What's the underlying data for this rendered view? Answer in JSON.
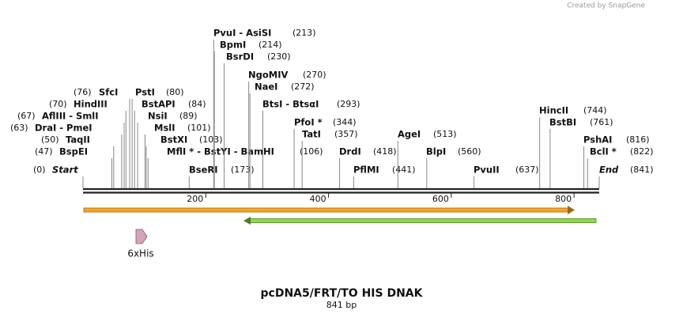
{
  "credit": "Created by SnapGene",
  "map": {
    "title": "pcDNA5/FRT/TO HIS DNAK",
    "size_label": "841 bp",
    "length": 841,
    "ticks": [
      200,
      400,
      600,
      800
    ],
    "sites": [
      {
        "name": "Start",
        "position": {
          "value": 0,
          "label": "(0)"
        }
      },
      {
        "name": "BspEI",
        "position": {
          "value": 47,
          "label": "(47)"
        }
      },
      {
        "name": "TaqII",
        "position": {
          "value": 50,
          "label": "(50)"
        }
      },
      {
        "name": "DraI  -  PmeI",
        "position": {
          "value": 63,
          "label": "(63)"
        }
      },
      {
        "name": "AflIII  -  SmlI",
        "position": {
          "value": 67,
          "label": "(67)"
        }
      },
      {
        "name": "HindIII",
        "position": {
          "value": 70,
          "label": "(70)"
        }
      },
      {
        "name": "SfcI",
        "position": {
          "value": 76,
          "label": "(76)"
        }
      },
      {
        "name": "PstI",
        "position": {
          "value": 80,
          "label": "(80)"
        }
      },
      {
        "name": "BstAPI",
        "position": {
          "value": 84,
          "label": "(84)"
        }
      },
      {
        "name": "NsiI",
        "position": {
          "value": 89,
          "label": "(89)"
        }
      },
      {
        "name": "MslI",
        "position": {
          "value": 101,
          "label": "(101)"
        }
      },
      {
        "name": "BstXI",
        "position": {
          "value": 103,
          "label": "(103)"
        }
      },
      {
        "name": "MflI *  -  BstYI  -  BamHI",
        "position": {
          "value": 106,
          "label": "(106)"
        }
      },
      {
        "name": "BseRI",
        "position": {
          "value": 173,
          "label": "(173)"
        }
      },
      {
        "name": "PvuI  -  AsiSI",
        "position": {
          "value": 213,
          "label": "(213)"
        }
      },
      {
        "name": "BpmI",
        "position": {
          "value": 214,
          "label": "(214)"
        }
      },
      {
        "name": "BsrDI",
        "position": {
          "value": 230,
          "label": "(230)"
        }
      },
      {
        "name": "NgoMIV",
        "position": {
          "value": 270,
          "label": "(270)"
        }
      },
      {
        "name": "NaeI",
        "position": {
          "value": 272,
          "label": "(272)"
        }
      },
      {
        "name": "BtsI  -  BtsαI",
        "position": {
          "value": 293,
          "label": "(293)"
        }
      },
      {
        "name": "PfoI *",
        "position": {
          "value": 344,
          "label": "(344)"
        }
      },
      {
        "name": "TatI",
        "position": {
          "value": 357,
          "label": "(357)"
        }
      },
      {
        "name": "DrdI",
        "position": {
          "value": 418,
          "label": "(418)"
        }
      },
      {
        "name": "PflMI",
        "position": {
          "value": 441,
          "label": "(441)"
        }
      },
      {
        "name": "AgeI",
        "position": {
          "value": 513,
          "label": "(513)"
        }
      },
      {
        "name": "BlpI",
        "position": {
          "value": 560,
          "label": "(560)"
        }
      },
      {
        "name": "PvuII",
        "position": {
          "value": 637,
          "label": "(637)"
        }
      },
      {
        "name": "HincII",
        "position": {
          "value": 744,
          "label": "(744)"
        }
      },
      {
        "name": "BstBI",
        "position": {
          "value": 761,
          "label": "(761)"
        }
      },
      {
        "name": "PshAI",
        "position": {
          "value": 816,
          "label": "(816)"
        }
      },
      {
        "name": "BclI *",
        "position": {
          "value": 822,
          "label": "(822)"
        }
      },
      {
        "name": "End",
        "position": {
          "value": 841,
          "label": "(841)"
        }
      }
    ],
    "features": [
      {
        "name": "6xHis"
      }
    ]
  }
}
